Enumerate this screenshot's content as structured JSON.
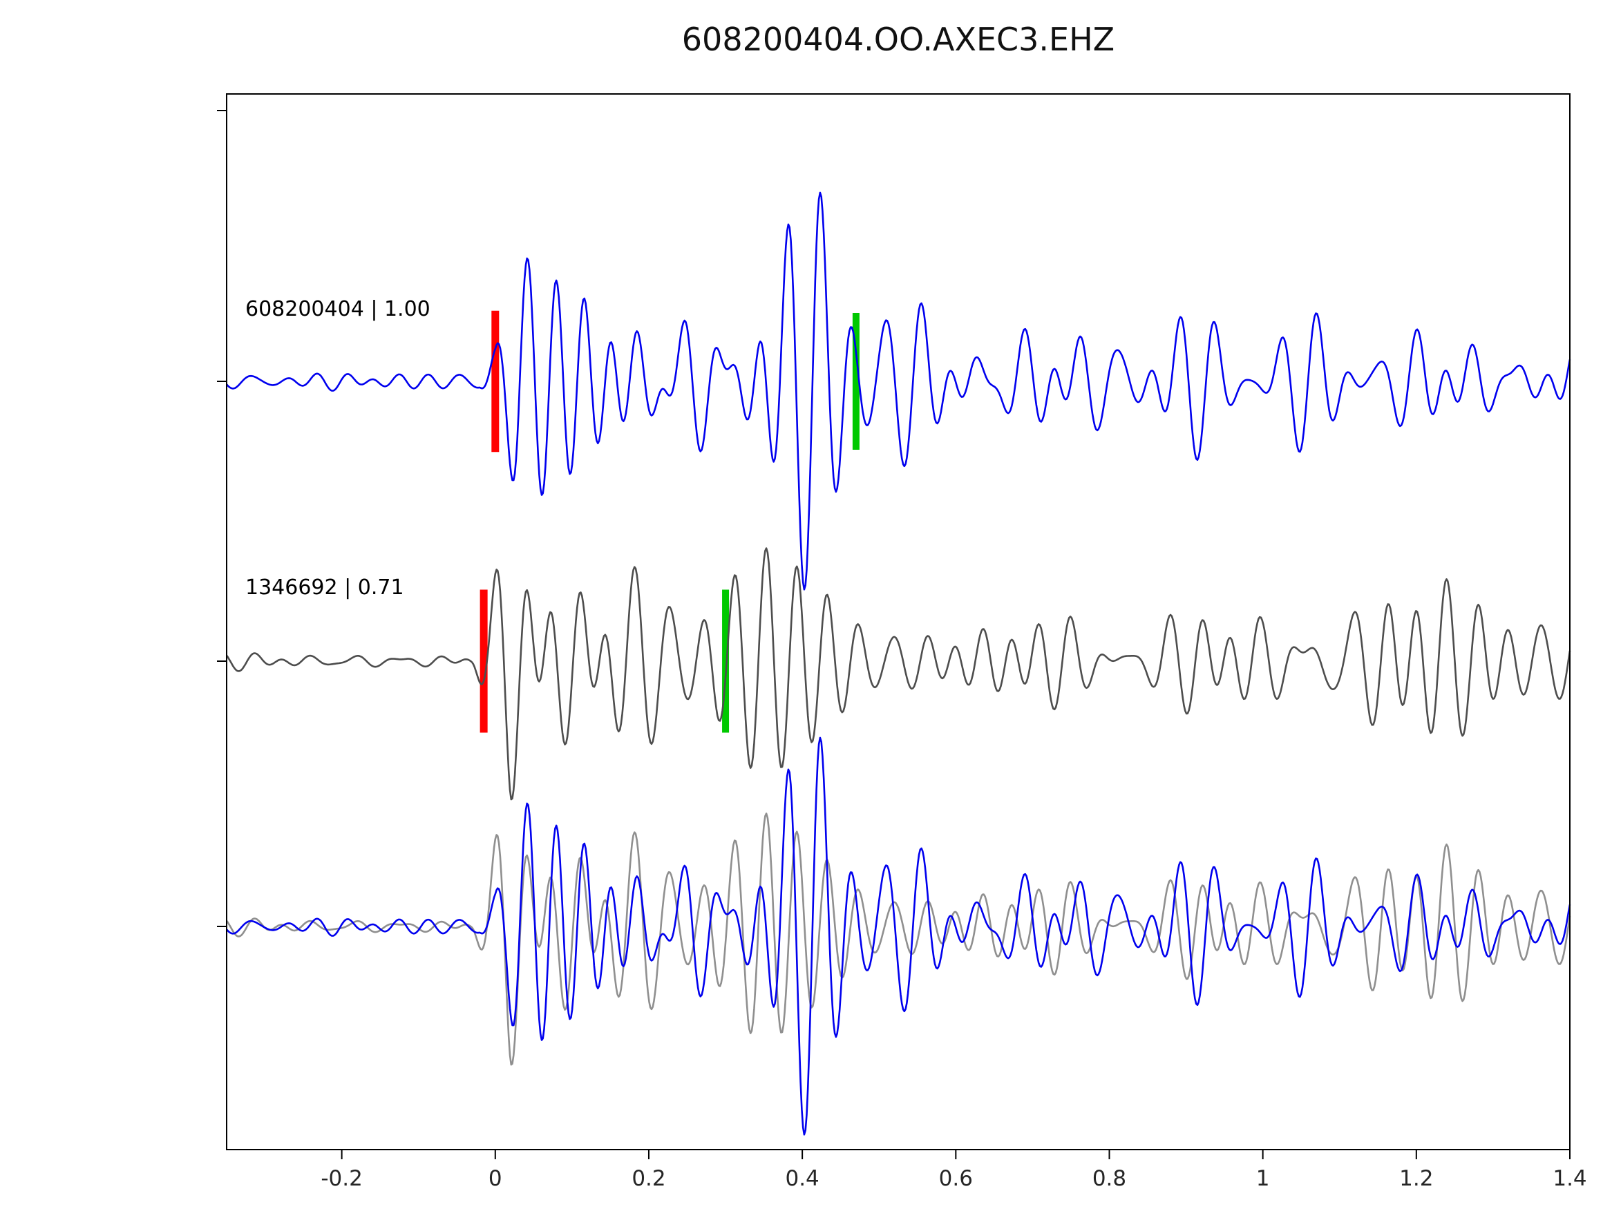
{
  "title": "608200404.OO.AXEC3.EHZ",
  "chart_data": {
    "type": "line",
    "title": "608200404.OO.AXEC3.EHZ",
    "subtitle": "",
    "xlabel": "",
    "ylabel": "",
    "xlim": [
      -0.35,
      1.4
    ],
    "grid": false,
    "legend": "none",
    "description": "Template-matching seismogram comparison: template trace (blue, top), detected event trace (gray, middle), and overlay of both (bottom). Red bars mark pick onset, green bars mark secondary pick.",
    "xticks": [
      -0.2,
      0,
      0.2,
      0.4,
      0.6,
      0.8,
      1.0,
      1.2,
      1.4
    ],
    "xtick_labels": [
      "-0.2",
      "0",
      "0.2",
      "0.4",
      "0.6",
      "0.8",
      "1",
      "1.2",
      "1.4"
    ],
    "trace_offsets": [
      2,
      1,
      0
    ],
    "traces": [
      {
        "name": "template-waveform",
        "event_id": "608200404",
        "correlation": 1.0,
        "label": "608200404 | 1.00",
        "color": "#0000ee",
        "offset": 2,
        "seed": 1337,
        "components": 8,
        "freq_range": [
          11,
          34
        ],
        "envelope": [
          [
            -0.35,
            0.07
          ],
          [
            -0.02,
            0.07
          ],
          [
            0.0,
            0.3
          ],
          [
            0.03,
            0.95
          ],
          [
            0.1,
            1.0
          ],
          [
            0.42,
            0.95
          ],
          [
            0.5,
            0.55
          ],
          [
            0.6,
            0.38
          ],
          [
            0.9,
            0.34
          ],
          [
            1.15,
            0.33
          ],
          [
            1.4,
            0.3
          ]
        ]
      },
      {
        "name": "detection-waveform",
        "event_id": "1346692",
        "correlation": 0.71,
        "label": "1346692 | 0.71",
        "color": "#4d4d4d",
        "offset": 1,
        "seed": 4242,
        "components": 8,
        "freq_range": [
          11,
          34
        ],
        "envelope": [
          [
            -0.35,
            0.06
          ],
          [
            -0.03,
            0.06
          ],
          [
            -0.01,
            0.35
          ],
          [
            0.02,
            1.0
          ],
          [
            0.12,
            0.92
          ],
          [
            0.3,
            0.55
          ],
          [
            0.5,
            0.36
          ],
          [
            0.8,
            0.3
          ],
          [
            1.0,
            0.29
          ],
          [
            1.08,
            0.48
          ],
          [
            1.18,
            0.42
          ],
          [
            1.25,
            0.3
          ],
          [
            1.4,
            0.26
          ]
        ]
      },
      {
        "name": "overlay-detection-waveform",
        "source": 1,
        "color": "#8f8f8f",
        "offset": 0
      },
      {
        "name": "overlay-template-waveform",
        "source": 0,
        "color": "#0000ee",
        "offset": 0
      }
    ],
    "markers": [
      {
        "name": "pick-marker-red-template",
        "trace": 0,
        "x": 0.0,
        "color": "#ff0000",
        "half_height": 0.93,
        "width": 11
      },
      {
        "name": "pick-marker-green-template",
        "trace": 0,
        "x": 0.47,
        "color": "#00c800",
        "half_height": 0.9,
        "width": 10
      },
      {
        "name": "pick-marker-red-detection",
        "trace": 1,
        "x": -0.015,
        "color": "#ff0000",
        "half_height": 0.9,
        "width": 11
      },
      {
        "name": "pick-marker-green-detection",
        "trace": 1,
        "x": 0.3,
        "color": "#00c800",
        "half_height": 0.9,
        "width": 10
      }
    ],
    "axis_color": "#000000",
    "tick_label_color": "#262626"
  }
}
